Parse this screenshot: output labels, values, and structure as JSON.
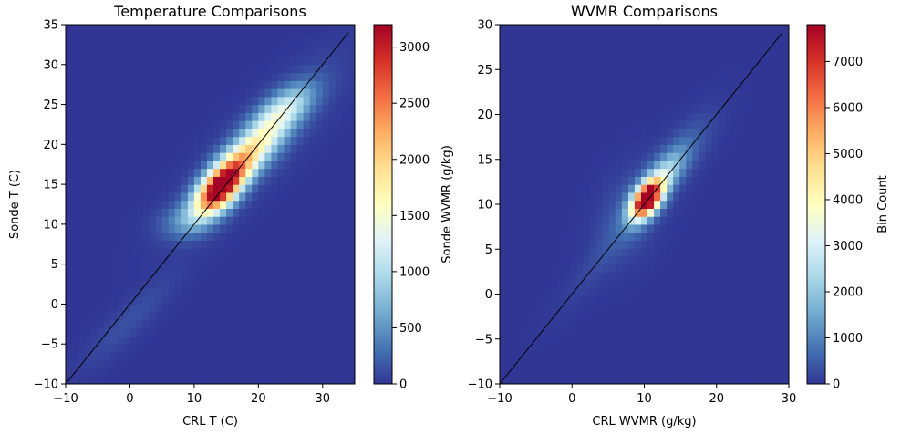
{
  "chart_data": [
    {
      "type": "heatmap",
      "title": "Temperature Comparisons",
      "xlabel": "CRL T (C)",
      "ylabel": "Sonde T (C)",
      "xlim": [
        -10,
        35
      ],
      "ylim": [
        -10,
        35
      ],
      "xticks": [
        "−10",
        "0",
        "10",
        "20",
        "30"
      ],
      "xtick_values": [
        -10,
        0,
        10,
        20,
        30
      ],
      "yticks": [
        "−10",
        "−5",
        "0",
        "5",
        "10",
        "15",
        "20",
        "25",
        "30",
        "35"
      ],
      "ytick_values": [
        -10,
        -5,
        0,
        5,
        10,
        15,
        20,
        25,
        30,
        35
      ],
      "colormap": "RdYlBu_r",
      "colorbar": {
        "label": "",
        "range": [
          0,
          3200
        ],
        "ticks": [
          "0",
          "500",
          "1000",
          "1500",
          "2000",
          "2500",
          "3000"
        ],
        "tick_values": [
          0,
          500,
          1000,
          1500,
          2000,
          2500,
          3000
        ]
      },
      "reference_line": {
        "from": [
          -10,
          -10
        ],
        "to": [
          34,
          34
        ],
        "color": "#000000"
      },
      "hotspots": [
        {
          "x": 14,
          "y": 14.5,
          "sx": 2.6,
          "sy": 2.2,
          "rho": 0.6,
          "amp": 3200
        },
        {
          "x": 18.5,
          "y": 19,
          "sx": 3.6,
          "sy": 2.8,
          "rho": 0.75,
          "amp": 1500
        },
        {
          "x": 24,
          "y": 24.5,
          "sx": 3.0,
          "sy": 2.0,
          "rho": 0.6,
          "amp": 900
        },
        {
          "x": 9,
          "y": 10.5,
          "sx": 3.0,
          "sy": 1.5,
          "rho": 0.2,
          "amp": 400
        },
        {
          "x": 20,
          "y": 20,
          "sx": 7.0,
          "sy": 6.0,
          "rho": 0.85,
          "amp": 350
        },
        {
          "x": 0,
          "y": -2,
          "sx": 5.0,
          "sy": 4.0,
          "rho": 0.9,
          "amp": 140
        }
      ]
    },
    {
      "type": "heatmap",
      "title": "WVMR Comparisons",
      "xlabel": "CRL WVMR (g/kg)",
      "ylabel": "Sonde WVMR (g/kg)",
      "xlim": [
        -10,
        30
      ],
      "ylim": [
        -10,
        30
      ],
      "xticks": [
        "−10",
        "0",
        "10",
        "20",
        "30"
      ],
      "xtick_values": [
        -10,
        0,
        10,
        20,
        30
      ],
      "yticks": [
        "−10",
        "−5",
        "0",
        "5",
        "10",
        "15",
        "20",
        "25",
        "30"
      ],
      "ytick_values": [
        -10,
        -5,
        0,
        5,
        10,
        15,
        20,
        25,
        30
      ],
      "colormap": "RdYlBu_r",
      "colorbar": {
        "label": "Bin Count",
        "range": [
          0,
          7800
        ],
        "ticks": [
          "0",
          "1000",
          "2000",
          "3000",
          "4000",
          "5000",
          "6000",
          "7000"
        ],
        "tick_values": [
          0,
          1000,
          2000,
          3000,
          4000,
          5000,
          6000,
          7000
        ]
      },
      "reference_line": {
        "from": [
          -10,
          -10
        ],
        "to": [
          29,
          29
        ],
        "color": "#000000"
      },
      "hotspots": [
        {
          "x": 10.3,
          "y": 10.5,
          "sx": 1.4,
          "sy": 1.4,
          "rho": 0.5,
          "amp": 7800
        },
        {
          "x": 12,
          "y": 12.5,
          "sx": 2.2,
          "sy": 2.2,
          "rho": 0.75,
          "amp": 2200
        },
        {
          "x": 14,
          "y": 14.5,
          "sx": 3.5,
          "sy": 3.5,
          "rho": 0.8,
          "amp": 700
        },
        {
          "x": 8,
          "y": 9,
          "sx": 3.0,
          "sy": 3.5,
          "rho": 0.4,
          "amp": 500
        },
        {
          "x": 4,
          "y": 4,
          "sx": 4.0,
          "sy": 4.0,
          "rho": 0.9,
          "amp": 220
        }
      ]
    }
  ]
}
